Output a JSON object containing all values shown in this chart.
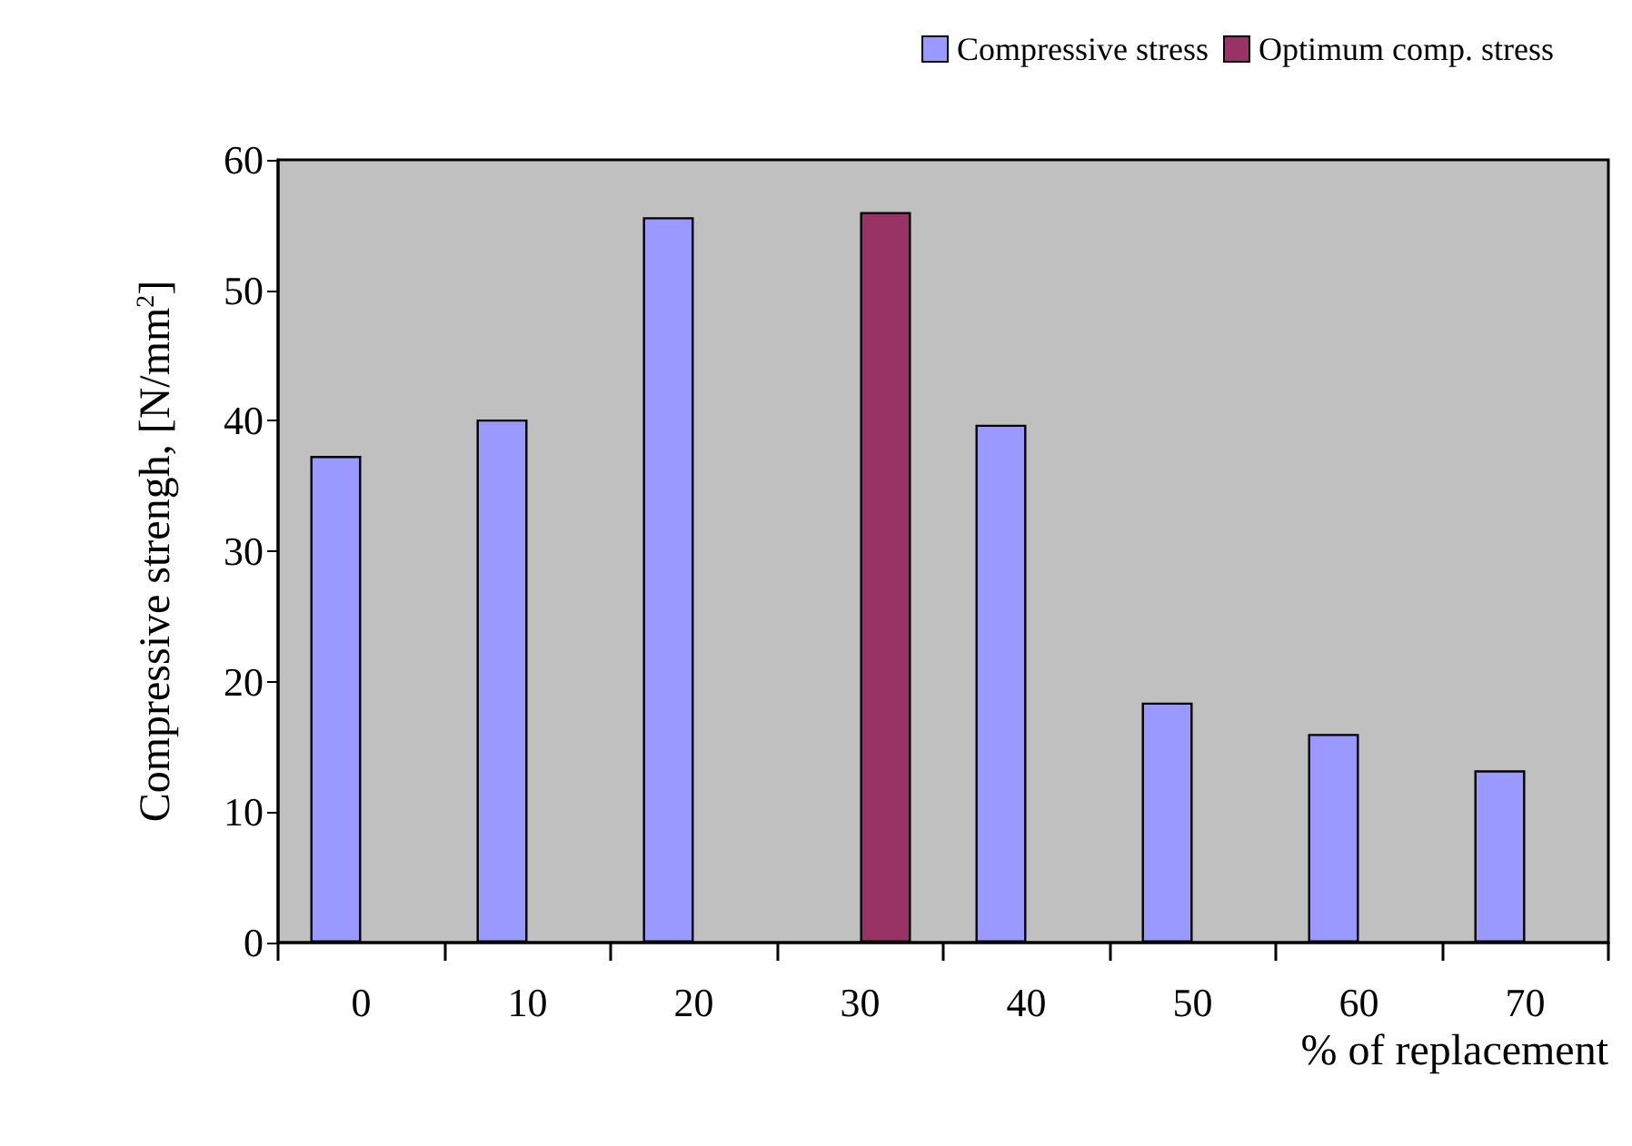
{
  "chart_data": {
    "type": "bar",
    "categories": [
      "0",
      "10",
      "20",
      "30",
      "40",
      "50",
      "60",
      "70"
    ],
    "series": [
      {
        "name": "Compressive stress",
        "color": "#9999ff",
        "values": [
          37.3,
          40.1,
          55.6,
          null,
          39.7,
          18.4,
          16.0,
          13.2
        ]
      },
      {
        "name": "Optimum comp. stress",
        "color": "#993366",
        "values": [
          null,
          null,
          null,
          56.0,
          null,
          null,
          null,
          null
        ]
      }
    ],
    "xlabel": "% of replacement",
    "ylabel": "Compressive strengh, [N/mm$^{2}$]",
    "ylim": [
      0,
      60
    ],
    "yticks": [
      0,
      10,
      20,
      30,
      40,
      50,
      60
    ],
    "grid": false,
    "legend": "top right"
  }
}
